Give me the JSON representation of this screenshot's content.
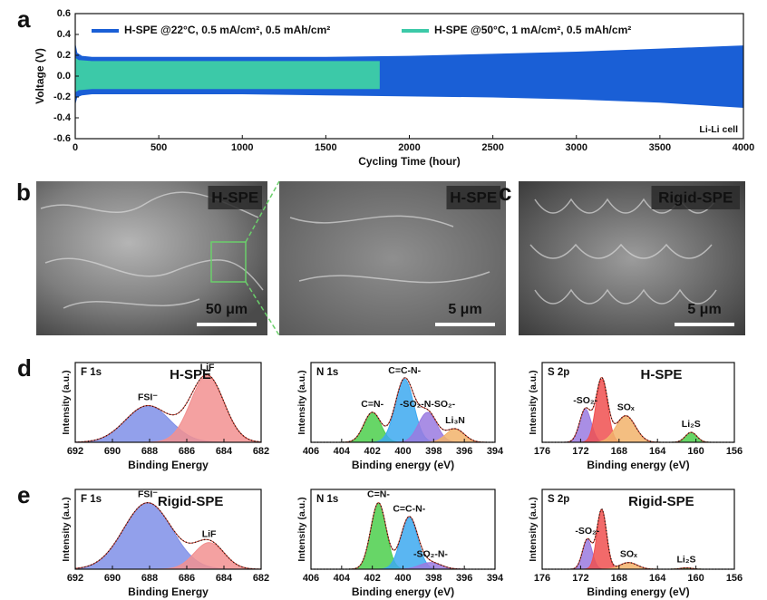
{
  "chart_data": [
    {
      "type": "band",
      "panel": "a",
      "xlabel": "Cycling Time (hour)",
      "ylabel": "Voltage (V)",
      "annotation": "Li-Li cell",
      "xlim": [
        0,
        4000
      ],
      "xticks": [
        0,
        500,
        1000,
        1500,
        2000,
        2500,
        3000,
        3500,
        4000
      ],
      "ylim": [
        -0.6,
        0.6
      ],
      "yticks": [
        -0.6,
        -0.4,
        -0.2,
        {
          "value": 0,
          "label": "0.0"
        },
        0.2,
        0.4,
        0.6
      ],
      "legend": "top",
      "series": [
        {
          "name": "H-SPE @22°C, 0.5 mA/cm², 0.5 mAh/cm²",
          "color": "#1a5fd6",
          "x": [
            0,
            10,
            40,
            100,
            500,
            1000,
            1500,
            2000,
            2500,
            3000,
            3500,
            4000
          ],
          "upper": [
            0.3,
            0.22,
            0.19,
            0.18,
            0.18,
            0.18,
            0.18,
            0.19,
            0.21,
            0.23,
            0.26,
            0.29
          ],
          "lower": [
            -0.26,
            -0.2,
            -0.18,
            -0.17,
            -0.17,
            -0.17,
            -0.18,
            -0.19,
            -0.2,
            -0.22,
            -0.25,
            -0.3
          ]
        },
        {
          "name": "H-SPE @50°C, 1 mA/cm², 0.5 mAh/cm²",
          "color": "#3cc9a8",
          "x": [
            0,
            20,
            100,
            1000,
            1820
          ],
          "upper": [
            0.17,
            0.15,
            0.14,
            0.14,
            0.14
          ],
          "lower": [
            -0.15,
            -0.13,
            -0.12,
            -0.12,
            -0.12
          ]
        }
      ]
    },
    {
      "type": "xps",
      "panel": "d",
      "title": "F 1s",
      "tag": "H-SPE",
      "tag_color": "#2fa05a",
      "xlabel": "Binding Energy",
      "ylabel": "Intensity (a.u.)",
      "xlim": [
        692,
        682
      ],
      "xticks": [
        692,
        690,
        688,
        686,
        684,
        682
      ],
      "ylim": [
        0,
        1.2
      ],
      "peaks": [
        {
          "name": "FSI⁻",
          "center": 688.1,
          "height": 0.55,
          "width": 1.2,
          "color": "#7f8fe8"
        },
        {
          "name": "LiF",
          "center": 684.9,
          "height": 1.0,
          "width": 0.9,
          "color": "#f29090"
        }
      ]
    },
    {
      "type": "xps",
      "title": "N 1s",
      "xlabel": "Binding energy (eV)",
      "ylabel": "Intensity (a.u.)",
      "xlim": [
        406,
        394
      ],
      "xticks": [
        406,
        404,
        402,
        400,
        398,
        396,
        394
      ],
      "ylim": [
        0,
        1.2
      ],
      "peaks": [
        {
          "name": "C=N-",
          "center": 402.0,
          "height": 0.45,
          "width": 0.55,
          "color": "#4ccf4c"
        },
        {
          "name": "C=C-N-",
          "center": 399.9,
          "height": 0.95,
          "width": 0.6,
          "color": "#3da9f0"
        },
        {
          "name": "-SO₂-N-SO₂-",
          "center": 398.4,
          "height": 0.45,
          "width": 0.6,
          "color": "#9a7ae0"
        },
        {
          "name": "Li₃N",
          "center": 396.6,
          "height": 0.2,
          "width": 0.6,
          "color": "#f2b36b"
        }
      ]
    },
    {
      "type": "xps",
      "title": "S 2p",
      "tag": "H-SPE",
      "tag_color": "#2fa05a",
      "xlabel": "Binding energy (eV)",
      "ylabel": "Intensity (a.u.)",
      "xlim": [
        176,
        156
      ],
      "xticks": [
        176,
        172,
        168,
        164,
        160,
        156
      ],
      "ylim": [
        0,
        1.2
      ],
      "peaks": [
        {
          "name": "-SO₂-",
          "center": 171.5,
          "height": 0.5,
          "width": 0.6,
          "color": "#9a7ae0"
        },
        {
          "name": null,
          "center": 169.8,
          "height": 0.95,
          "width": 0.6,
          "color": "#f05050"
        },
        {
          "name": "SOₓ",
          "center": 167.3,
          "height": 0.4,
          "width": 1.0,
          "color": "#f2b36b"
        },
        {
          "name": "Li₂S",
          "center": 160.5,
          "height": 0.15,
          "width": 0.6,
          "color": "#4ccf4c"
        }
      ]
    },
    {
      "type": "xps",
      "panel": "e",
      "title": "F 1s",
      "tag": "Rigid-SPE",
      "tag_color": "#e86060",
      "xlabel": "Binding Energy",
      "ylabel": "Intensity (a.u.)",
      "xlim": [
        692,
        682
      ],
      "xticks": [
        692,
        690,
        688,
        686,
        684,
        682
      ],
      "ylim": [
        0,
        1.2
      ],
      "peaks": [
        {
          "name": "FSI⁻",
          "center": 688.1,
          "height": 1.0,
          "width": 1.3,
          "color": "#7f8fe8"
        },
        {
          "name": "LiF",
          "center": 684.8,
          "height": 0.4,
          "width": 0.8,
          "color": "#f29090"
        }
      ]
    },
    {
      "type": "xps",
      "title": "N 1s",
      "xlabel": "Binding energy (eV)",
      "ylabel": "Intensity (a.u.)",
      "xlim": [
        406,
        394
      ],
      "xticks": [
        406,
        404,
        402,
        400,
        398,
        396,
        394
      ],
      "ylim": [
        0,
        1.2
      ],
      "peaks": [
        {
          "name": "C=N-",
          "center": 401.6,
          "height": 1.0,
          "width": 0.5,
          "color": "#4ccf4c"
        },
        {
          "name": "C=C-N-",
          "center": 399.6,
          "height": 0.78,
          "width": 0.55,
          "color": "#3da9f0"
        },
        {
          "name": "-SO₂-N-",
          "center": 398.2,
          "height": 0.1,
          "width": 0.7,
          "color": "#9a7ae0"
        }
      ]
    },
    {
      "type": "xps",
      "title": "S 2p",
      "tag": "Rigid-SPE",
      "tag_color": "#e86060",
      "xlabel": "Binding energy (eV)",
      "ylabel": "Intensity (a.u.)",
      "xlim": [
        176,
        156
      ],
      "xticks": [
        176,
        172,
        168,
        164,
        160,
        156
      ],
      "ylim": [
        0,
        1.2
      ],
      "peaks": [
        {
          "name": "-SO₂-",
          "center": 171.3,
          "height": 0.45,
          "width": 0.5,
          "color": "#9a7ae0"
        },
        {
          "name": null,
          "center": 169.8,
          "height": 0.9,
          "width": 0.5,
          "color": "#f05050"
        },
        {
          "name": "SOₓ",
          "center": 167.0,
          "height": 0.1,
          "width": 0.9,
          "color": "#f2b36b"
        },
        {
          "name": "Li₂S",
          "center": 161.0,
          "height": 0.02,
          "width": 0.6,
          "color": "#4ccf4c"
        }
      ]
    }
  ],
  "images": [
    {
      "panel": "b",
      "tag": "H-SPE",
      "tag_color": "#2fa05a",
      "scale": "50 μm"
    },
    {
      "tag": "H-SPE",
      "tag_color": "#2fa05a",
      "scale": "5 μm"
    },
    {
      "panel": "c",
      "tag": "Rigid-SPE",
      "tag_color": "#e86060",
      "scale": "5 μm"
    }
  ]
}
